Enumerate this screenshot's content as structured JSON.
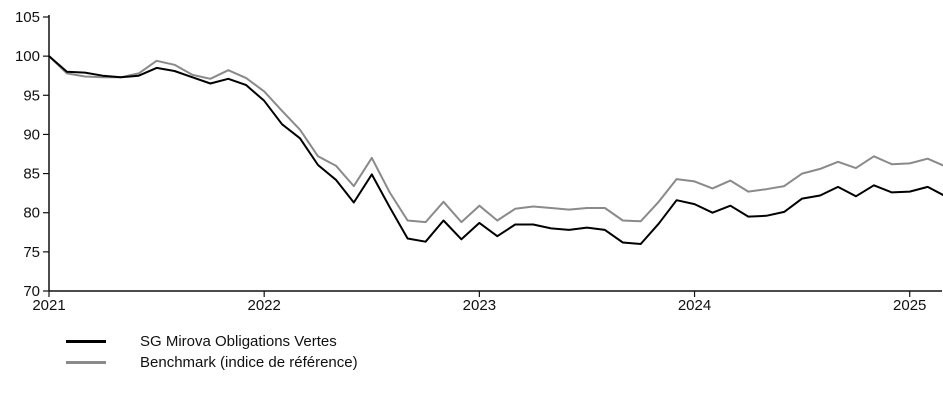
{
  "chart_data": {
    "type": "line",
    "title": "",
    "xlabel": "",
    "ylabel": "",
    "xlim": [
      2021.0,
      2025.15
    ],
    "ylim": [
      70,
      105
    ],
    "grid": false,
    "legend_position": "bottom-left",
    "x_ticks": [
      "2021",
      "2022",
      "2023",
      "2024",
      "2025"
    ],
    "y_ticks": [
      "70",
      "75",
      "80",
      "85",
      "90",
      "95",
      "100",
      "105"
    ],
    "x": [
      "2021-01",
      "2021-02",
      "2021-03",
      "2021-04",
      "2021-05",
      "2021-06",
      "2021-07",
      "2021-08",
      "2021-09",
      "2021-10",
      "2021-11",
      "2021-12",
      "2022-01",
      "2022-02",
      "2022-03",
      "2022-04",
      "2022-05",
      "2022-06",
      "2022-07",
      "2022-08",
      "2022-09",
      "2022-10",
      "2022-11",
      "2022-12",
      "2023-01",
      "2023-02",
      "2023-03",
      "2023-04",
      "2023-05",
      "2023-06",
      "2023-07",
      "2023-08",
      "2023-09",
      "2023-10",
      "2023-11",
      "2023-12",
      "2024-01",
      "2024-02",
      "2024-03",
      "2024-04",
      "2024-05",
      "2024-06",
      "2024-07",
      "2024-08",
      "2024-09",
      "2024-10",
      "2024-11",
      "2024-12",
      "2025-01",
      "2025-02",
      "2025-03"
    ],
    "series": [
      {
        "name": "SG Mirova Obligations Vertes",
        "color": "#000000",
        "values": [
          100.0,
          98.0,
          97.9,
          97.5,
          97.3,
          97.5,
          98.5,
          98.1,
          97.3,
          96.5,
          97.1,
          96.3,
          94.3,
          91.3,
          89.5,
          86.1,
          84.2,
          81.3,
          84.9,
          80.7,
          76.7,
          76.3,
          79.0,
          76.6,
          78.7,
          77.0,
          78.5,
          78.5,
          78.0,
          77.8,
          78.1,
          77.8,
          76.2,
          76.0,
          78.6,
          81.6,
          81.1,
          80.0,
          80.9,
          79.5,
          79.6,
          80.1,
          81.8,
          82.2,
          83.3,
          82.1,
          83.5,
          82.6,
          82.7,
          83.3,
          82.1
        ]
      },
      {
        "name": "Benchmark (indice de référence)",
        "color": "#8a8a8a",
        "values": [
          100.0,
          97.8,
          97.4,
          97.3,
          97.3,
          97.8,
          99.4,
          98.9,
          97.6,
          97.1,
          98.2,
          97.2,
          95.5,
          93.0,
          90.6,
          87.2,
          86.0,
          83.4,
          87.0,
          82.6,
          79.0,
          78.8,
          81.4,
          78.8,
          80.9,
          79.0,
          80.5,
          80.8,
          80.6,
          80.4,
          80.6,
          80.6,
          79.0,
          78.9,
          81.4,
          84.3,
          84.0,
          83.1,
          84.1,
          82.7,
          83.0,
          83.4,
          85.0,
          85.6,
          86.5,
          85.7,
          87.2,
          86.2,
          86.3,
          86.9,
          85.9
        ]
      }
    ]
  }
}
